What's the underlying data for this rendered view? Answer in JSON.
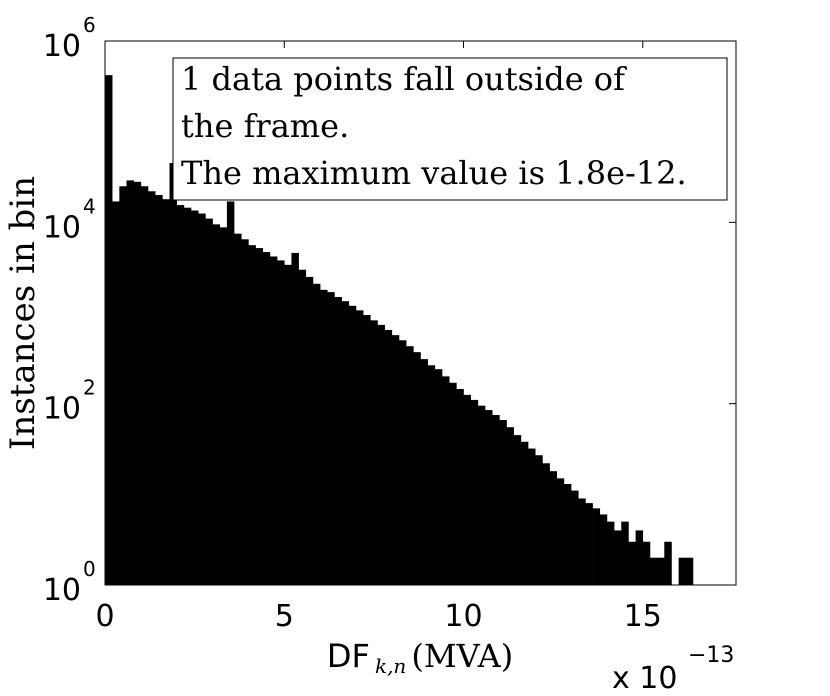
{
  "chart_data": {
    "type": "histogram",
    "ylabel": "Instances in bin",
    "xlabel": {
      "text": "DF",
      "subscript": "k,n",
      "unit": "(MVA)"
    },
    "x_multiplier": {
      "label": "x 10",
      "exponent": "−13"
    },
    "annotation": [
      "1 data points fall outside of",
      "the frame.",
      "The maximum value is 1.8e-12."
    ],
    "color": "#000000",
    "log_y": true,
    "xlim": [
      0,
      17.6
    ],
    "xticks": [
      0,
      5,
      10,
      15
    ],
    "ylim": [
      1,
      1000000
    ],
    "yticks": [
      {
        "value": 1,
        "label": "10",
        "exponent": "0"
      },
      {
        "value": 100,
        "label": "10",
        "exponent": "2"
      },
      {
        "value": 10000,
        "label": "10",
        "exponent": "4"
      },
      {
        "value": 1000000,
        "label": "10",
        "exponent": "6"
      }
    ],
    "bins": [
      0,
      0.2,
      0.4,
      0.6,
      0.8,
      1.0,
      1.2,
      1.4,
      1.6,
      1.8,
      2.0,
      2.2,
      2.4,
      2.6,
      2.8,
      3.0,
      3.2,
      3.4,
      3.6,
      3.8,
      4.0,
      4.2,
      4.4,
      4.6,
      4.8,
      5.0,
      5.2,
      5.4,
      5.6,
      5.8,
      6.0,
      6.2,
      6.4,
      6.6,
      6.8,
      7.0,
      7.2,
      7.4,
      7.6,
      7.8,
      8.0,
      8.2,
      8.4,
      8.6,
      8.8,
      9.0,
      9.2,
      9.4,
      9.6,
      9.8,
      10.0,
      10.2,
      10.4,
      10.6,
      10.8,
      11.0,
      11.2,
      11.4,
      11.6,
      11.8,
      12.0,
      12.2,
      12.4,
      12.6,
      12.8,
      13.0,
      13.2,
      13.4,
      13.6,
      13.8,
      14.0,
      14.2,
      14.4,
      14.6,
      14.8,
      15.0,
      15.2,
      15.4,
      15.6,
      15.8,
      16.0,
      16.2,
      16.4
    ],
    "values": [
      420000,
      17000,
      25000,
      29000,
      28000,
      25000,
      22000,
      20000,
      18000,
      45000,
      15500,
      14500,
      13500,
      12500,
      11000,
      9500,
      8800,
      17000,
      7500,
      6500,
      5600,
      5200,
      4700,
      4200,
      3800,
      3400,
      4600,
      3000,
      2500,
      2100,
      1800,
      1700,
      1500,
      1350,
      1200,
      1070,
      950,
      830,
      740,
      650,
      570,
      500,
      430,
      370,
      310,
      265,
      240,
      200,
      170,
      145,
      125,
      110,
      95,
      85,
      75,
      66,
      55,
      45,
      38,
      32,
      27,
      22,
      18,
      15,
      13,
      11,
      9,
      8,
      7,
      6,
      5,
      4,
      5,
      3,
      4,
      3,
      2,
      2,
      3,
      1,
      2,
      2
    ]
  }
}
